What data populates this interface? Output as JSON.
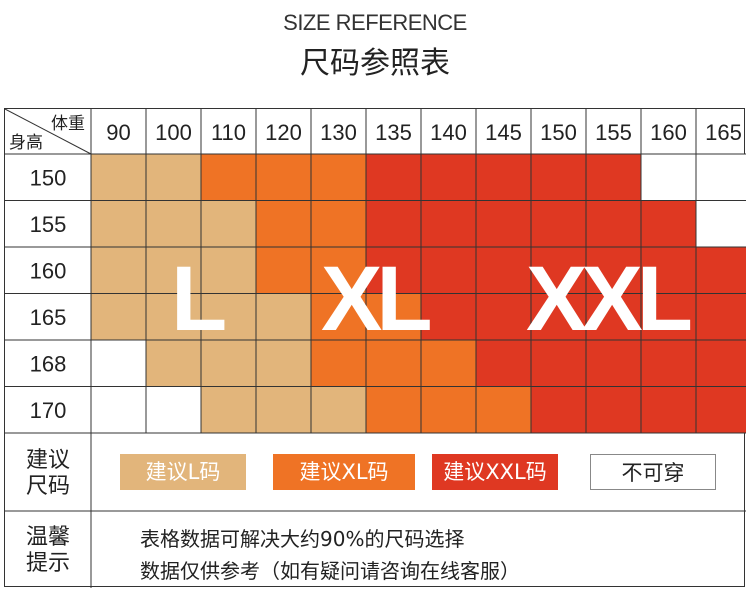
{
  "header": {
    "title_en": "SIZE REFERENCE",
    "title_cn": "尺码参照表"
  },
  "table": {
    "corner_top": "体重",
    "corner_bottom": "身高",
    "weights": [
      "90",
      "100",
      "110",
      "120",
      "130",
      "135",
      "140",
      "145",
      "150",
      "155",
      "160",
      "165"
    ],
    "heights": [
      "150",
      "155",
      "160",
      "165",
      "168",
      "170"
    ],
    "grid": [
      [
        "L",
        "L",
        "XL",
        "XL",
        "XL",
        "XXL",
        "XXL",
        "XXL",
        "XXL",
        "XXL",
        "N",
        "N"
      ],
      [
        "L",
        "L",
        "L",
        "XL",
        "XL",
        "XXL",
        "XXL",
        "XXL",
        "XXL",
        "XXL",
        "XXL",
        "N"
      ],
      [
        "L",
        "L",
        "L",
        "XL",
        "XL",
        "XXL",
        "XXL",
        "XXL",
        "XXL",
        "XXL",
        "XXL",
        "XXL"
      ],
      [
        "L",
        "L",
        "L",
        "L",
        "XL",
        "XL",
        "XXL",
        "XXL",
        "XXL",
        "XXL",
        "XXL",
        "XXL"
      ],
      [
        "N",
        "L",
        "L",
        "L",
        "XL",
        "XL",
        "XL",
        "XXL",
        "XXL",
        "XXL",
        "XXL",
        "XXL"
      ],
      [
        "N",
        "N",
        "L",
        "L",
        "L",
        "XL",
        "XL",
        "XL",
        "XXL",
        "XXL",
        "XXL",
        "XXL"
      ]
    ],
    "big_labels": {
      "L": "L",
      "XL": "XL",
      "XXL": "XXL"
    }
  },
  "colors": {
    "L": "#e2b57b",
    "XL": "#ef7325",
    "XXL": "#df3822",
    "N": "#ffffff",
    "border": "#333333"
  },
  "suggest": {
    "label_line1": "建议",
    "label_line2": "尺码",
    "items": [
      {
        "key": "L",
        "text": "建议L码"
      },
      {
        "key": "XL",
        "text": "建议XL码"
      },
      {
        "key": "XXL",
        "text": "建议XXL码"
      },
      {
        "key": "N",
        "text": "不可穿"
      }
    ]
  },
  "tips": {
    "label_line1": "温馨",
    "label_line2": "提示",
    "line1": "表格数据可解决大约90%的尺码选择",
    "line2": "数据仅供参考（如有疑问请咨询在线客服）"
  }
}
